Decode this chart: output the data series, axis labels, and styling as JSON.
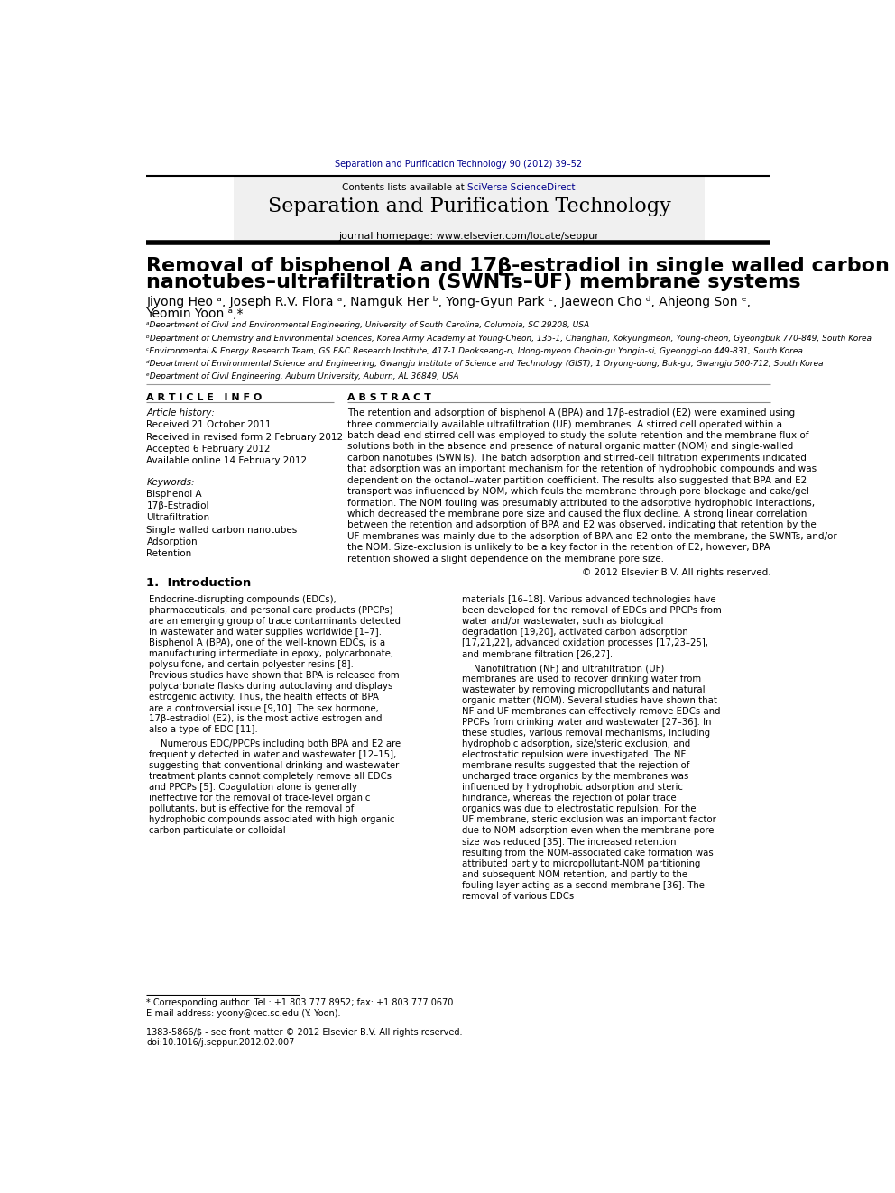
{
  "fig_width": 9.92,
  "fig_height": 13.23,
  "bg_color": "#ffffff",
  "journal_ref": "Separation and Purification Technology 90 (2012) 39–52",
  "journal_ref_color": "#00008B",
  "journal_title": "Separation and Purification Technology",
  "journal_homepage": "journal homepage: www.elsevier.com/locate/seppur",
  "elsevier_color": "#FF6600",
  "article_title_line1": "Removal of bisphenol A and 17β-estradiol in single walled carbon",
  "article_title_line2": "nanotubes–ultrafiltration (SWNTs–UF) membrane systems",
  "affil_a": "ᵃDepartment of Civil and Environmental Engineering, University of South Carolina, Columbia, SC 29208, USA",
  "affil_b": "ᵇDepartment of Chemistry and Environmental Sciences, Korea Army Academy at Young-Cheon, 135-1, Changhari, Kokyungmeon, Young-cheon, Gyeongbuk 770-849, South Korea",
  "affil_c": "ᶜEnvironmental & Energy Research Team, GS E&C Research Institute, 417-1 Deokseang-ri, Idong-myeon Cheoin-gu Yongin-si, Gyeonggi-do 449-831, South Korea",
  "affil_d": "ᵈDepartment of Environmental Science and Engineering, Gwangju Institute of Science and Technology (GIST), 1 Oryong-dong, Buk-gu, Gwangju 500-712, South Korea",
  "affil_e": "ᵉDepartment of Civil Engineering, Auburn University, Auburn, AL 36849, USA",
  "article_info_title": "A R T I C L E   I N F O",
  "abstract_title": "A B S T R A C T",
  "article_history_title": "Article history:",
  "received": "Received 21 October 2011",
  "revised": "Received in revised form 2 February 2012",
  "accepted": "Accepted 6 February 2012",
  "available": "Available online 14 February 2012",
  "keywords_title": "Keywords:",
  "kw1": "Bisphenol A",
  "kw2": "17β-Estradiol",
  "kw3": "Ultrafiltration",
  "kw4": "Single walled carbon nanotubes",
  "kw5": "Adsorption",
  "kw6": "Retention",
  "abstract_text": "The retention and adsorption of bisphenol A (BPA) and 17β-estradiol (E2) were examined using three commercially available ultrafiltration (UF) membranes. A stirred cell operated within a batch dead-end stirred cell was employed to study the solute retention and the membrane flux of solutions both in the absence and presence of natural organic matter (NOM) and single-walled carbon nanotubes (SWNTs). The batch adsorption and stirred-cell filtration experiments indicated that adsorption was an important mechanism for the retention of hydrophobic compounds and was dependent on the octanol–water partition coefficient. The results also suggested that BPA and E2 transport was influenced by NOM, which fouls the membrane through pore blockage and cake/gel formation. The NOM fouling was presumably attributed to the adsorptive hydrophobic interactions, which decreased the membrane pore size and caused the flux decline. A strong linear correlation between the retention and adsorption of BPA and E2 was observed, indicating that retention by the UF membranes was mainly due to the adsorption of BPA and E2 onto the membrane, the SWNTs, and/or the NOM. Size-exclusion is unlikely to be a key factor in the retention of E2, however, BPA retention showed a slight dependence on the membrane pore size.",
  "copyright": "© 2012 Elsevier B.V. All rights reserved.",
  "intro_title": "1.  Introduction",
  "intro_text_left": "Endocrine-disrupting compounds (EDCs), pharmaceuticals, and personal care products (PPCPs) are an emerging group of trace contaminants detected in wastewater and water supplies worldwide [1–7]. Bisphenol A (BPA), one of the well-known EDCs, is a manufacturing intermediate in epoxy, polycarbonate, polysulfone, and certain polyester resins [8]. Previous studies have shown that BPA is released from polycarbonate flasks during autoclaving and displays estrogenic activity. Thus, the health effects of BPA are a controversial issue [9,10]. The sex hormone, 17β-estradiol (E2), is the most active estrogen and also a type of EDC [11].\n    Numerous EDC/PPCPs including both BPA and E2 are frequently detected in water and wastewater [12–15], suggesting that conventional drinking and wastewater treatment plants cannot completely remove all EDCs and PPCPs [5]. Coagulation alone is generally ineffective for the removal of trace-level organic pollutants, but is effective for the removal of hydrophobic compounds associated with high organic carbon particulate or colloidal",
  "intro_text_right": "materials [16–18]. Various advanced technologies have been developed for the removal of EDCs and PPCPs from water and/or wastewater, such as biological degradation [19,20], activated carbon adsorption [17,21,22], advanced oxidation processes [17,23–25], and membrane filtration [26,27].\n    Nanofiltration (NF) and ultrafiltration (UF) membranes are used to recover drinking water from wastewater by removing micropollutants and natural organic matter (NOM). Several studies have shown that NF and UF membranes can effectively remove EDCs and PPCPs from drinking water and wastewater [27–36]. In these studies, various removal mechanisms, including hydrophobic adsorption, size/steric exclusion, and electrostatic repulsion were investigated. The NF membrane results suggested that the rejection of uncharged trace organics by the membranes was influenced by hydrophobic adsorption and steric hindrance, whereas the rejection of polar trace organics was due to electrostatic repulsion. For the UF membrane, steric exclusion was an important factor due to NOM adsorption even when the membrane pore size was reduced [35]. The increased retention resulting from the NOM-associated cake formation was attributed partly to micropollutant-NOM partitioning and subsequent NOM retention, and partly to the fouling layer acting as a second membrane [36]. The removal of various EDCs",
  "footnote_star": "* Corresponding author. Tel.: +1 803 777 8952; fax: +1 803 777 0670.",
  "footnote_email": "E-mail address: yoony@cec.sc.edu (Y. Yoon).",
  "issn_line": "1383-5866/$ - see front matter © 2012 Elsevier B.V. All rights reserved.",
  "doi_line": "doi:10.1016/j.seppur.2012.02.007"
}
